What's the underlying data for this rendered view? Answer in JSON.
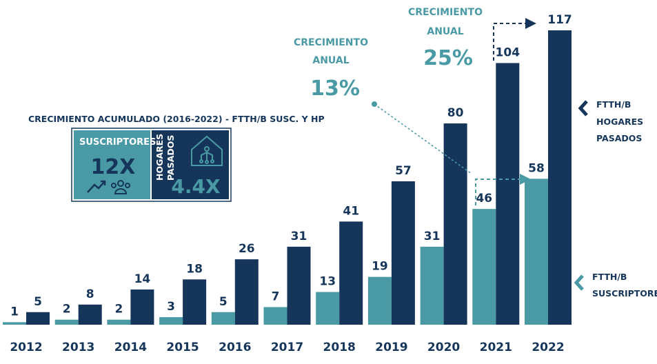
{
  "colors": {
    "subscribers": "#4a9aa5",
    "homes": "#15365a",
    "label_subscribers": "#15365a",
    "label_homes": "#15365a"
  },
  "annotations": {
    "growth_a": {
      "line1": "CRECIMIENTO",
      "line2": "ANUAL",
      "value": "13%"
    },
    "growth_b": {
      "line1": "CRECIMIENTO",
      "line2": "ANUAL",
      "value": "25%"
    }
  },
  "cumulative": {
    "title": "CRECIMIENTO ACUMULADO (2016-2022) - FTTH/B SUSC. Y HP",
    "subscribers_label": "SUSCRIPTORES",
    "subscribers_value": "12X",
    "homes_label_line1": "HOGARES",
    "homes_label_line2": "PASADOS",
    "homes_value": "4.4X",
    "icons": [
      "trend-up-icon",
      "users-group-icon",
      "smart-home-icon"
    ]
  },
  "legend": {
    "homes": [
      "FTTH/B",
      "HOGARES",
      "PASADOS"
    ],
    "subscribers": [
      "FTTH/B",
      "SUSCRIPTORES"
    ]
  },
  "chart_data": {
    "type": "bar",
    "categories": [
      "2012",
      "2013",
      "2014",
      "2015",
      "2016",
      "2017",
      "2018",
      "2019",
      "2020",
      "2021",
      "2022"
    ],
    "series": [
      {
        "values": [
          1,
          2,
          2,
          3,
          5,
          7,
          13,
          19,
          31,
          46,
          58
        ]
      },
      {
        "values": [
          5,
          8,
          14,
          18,
          26,
          31,
          41,
          57,
          80,
          104,
          117
        ]
      }
    ],
    "ylim": [
      0,
      120
    ],
    "grid": false
  }
}
